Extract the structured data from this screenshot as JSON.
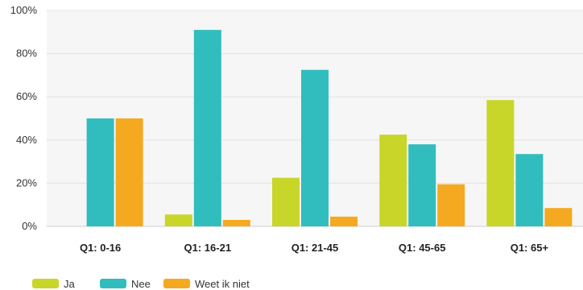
{
  "chart_data": {
    "type": "bar",
    "categories": [
      "Q1: 0-16",
      "Q1: 16-21",
      "Q1: 21-45",
      "Q1: 45-65",
      "Q1: 65+"
    ],
    "series": [
      {
        "name": "Ja",
        "color": "#c8d62a",
        "values": [
          0,
          5.5,
          22.5,
          42.5,
          58.5
        ]
      },
      {
        "name": "Nee",
        "color": "#31bdbd",
        "values": [
          50,
          91,
          72.5,
          38,
          33.5
        ]
      },
      {
        "name": "Weet ik niet",
        "color": "#f5a920",
        "values": [
          50,
          3,
          4.5,
          19.5,
          8.5
        ]
      }
    ],
    "yticks": [
      "0%",
      "20%",
      "40%",
      "60%",
      "80%",
      "100%"
    ],
    "ylim": [
      0,
      100
    ],
    "grid": true,
    "legend": "bottom-left"
  }
}
